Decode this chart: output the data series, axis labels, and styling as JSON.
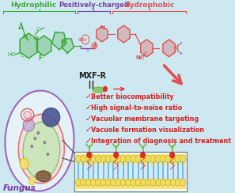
{
  "bg_color": "#cde8f0",
  "title_hydrophilic": "Hydrophilic",
  "title_charged": "Positively-charged",
  "title_hydrophobic": "Hydrophobic",
  "color_hydrophilic": "#3aaa35",
  "color_charged": "#7b3fa0",
  "color_hydrophobic": "#e05050",
  "label_mxfr": "MXF-R",
  "bullet_items": [
    "Better biocompatibility",
    "High signal-to-noise ratio",
    "Vacuolar membrane targeting",
    "Vacuole formation visualization",
    "Integration of diagnosis and treatment"
  ],
  "bullet_color": "#d42020",
  "fungus_label": "Fungus",
  "fungus_label_color": "#7b3fa0",
  "probe_color": "#7ab648",
  "probe_red_dot": "#d42020",
  "head_color": "#f5e170",
  "tail_color": "#90cbe8"
}
